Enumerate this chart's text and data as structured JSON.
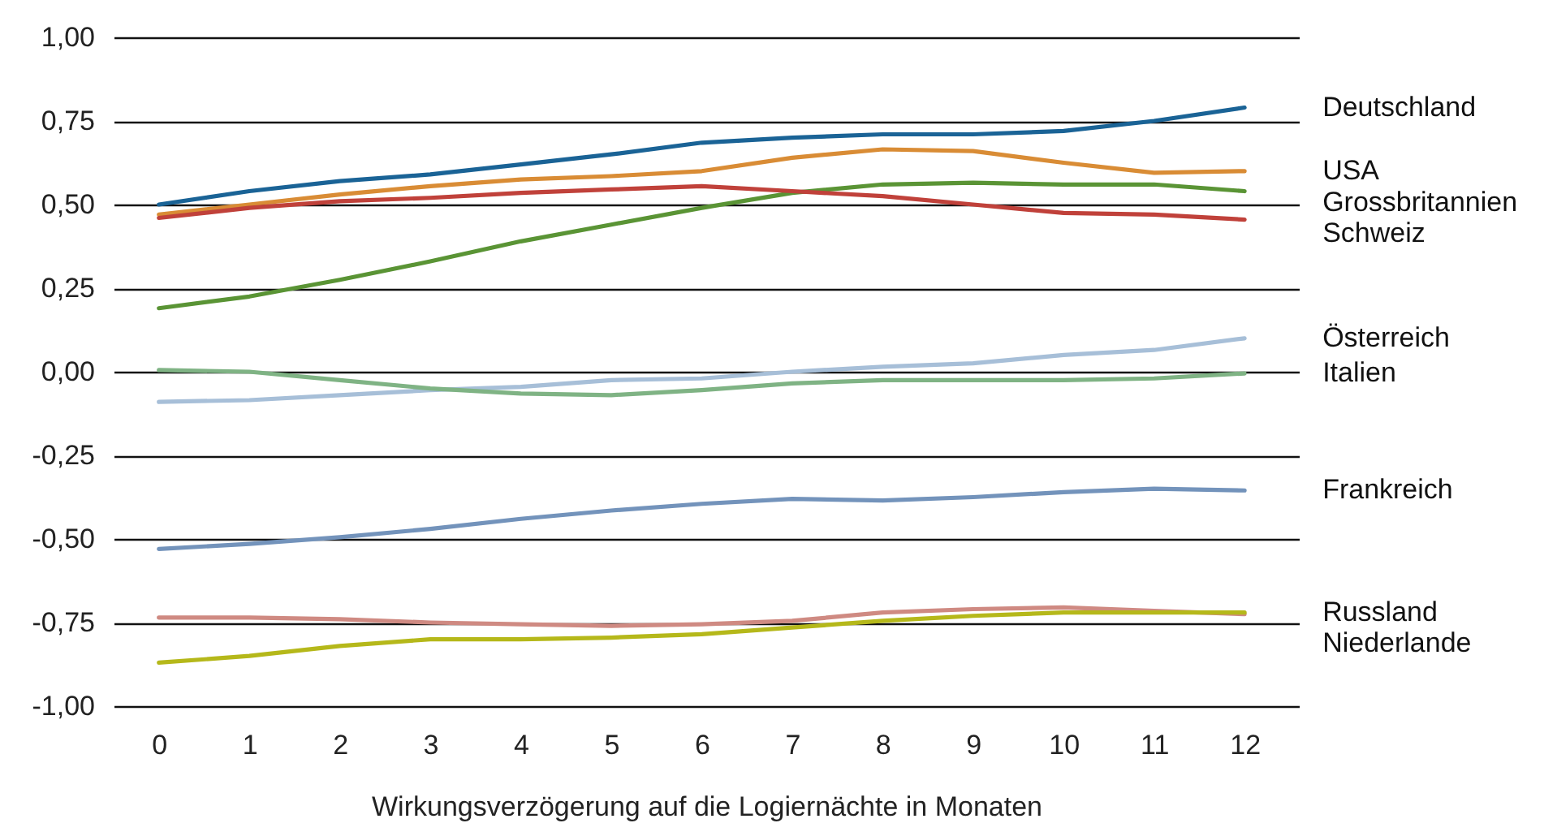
{
  "chart_data": {
    "type": "line",
    "xlabel": "Wirkungsverzögerung auf die Logiernächte in Monaten",
    "x": [
      0,
      1,
      2,
      3,
      4,
      5,
      6,
      7,
      8,
      9,
      10,
      11,
      12
    ],
    "xlim": [
      -0.5,
      12.6
    ],
    "xticks": [
      0,
      1,
      2,
      3,
      4,
      5,
      6,
      7,
      8,
      9,
      10,
      11,
      12
    ],
    "ylim": [
      -1,
      1
    ],
    "yticks": [
      {
        "value": -1,
        "label": "-1,00"
      },
      {
        "value": -0.75,
        "label": "-0,75"
      },
      {
        "value": -0.5,
        "label": "-0,50"
      },
      {
        "value": -0.25,
        "label": "-0,25"
      },
      {
        "value": 0,
        "label": "0,00"
      },
      {
        "value": 0.25,
        "label": "0,25"
      },
      {
        "value": 0.5,
        "label": "0,50"
      },
      {
        "value": 0.75,
        "label": "0,75"
      },
      {
        "value": 1,
        "label": "1,00"
      }
    ],
    "grid": "y",
    "legend": false,
    "marker": "none",
    "line_style": "solid",
    "series": [
      {
        "name": "Deutschland",
        "color": "#1a6396",
        "values": [
          0.5,
          0.54,
          0.57,
          0.59,
          0.62,
          0.65,
          0.685,
          0.7,
          0.71,
          0.71,
          0.72,
          0.75,
          0.79
        ]
      },
      {
        "name": "USA",
        "color": "#d98c35",
        "values": [
          0.47,
          0.5,
          0.53,
          0.555,
          0.575,
          0.585,
          0.6,
          0.64,
          0.665,
          0.66,
          0.625,
          0.595,
          0.6
        ]
      },
      {
        "name": "Grossbritannien",
        "color": "#5a9435",
        "values": [
          0.19,
          0.225,
          0.275,
          0.33,
          0.39,
          0.44,
          0.49,
          0.535,
          0.56,
          0.565,
          0.56,
          0.56,
          0.54
        ]
      },
      {
        "name": "Schweiz",
        "color": "#c0413a",
        "values": [
          0.46,
          0.49,
          0.51,
          0.52,
          0.535,
          0.545,
          0.555,
          0.54,
          0.525,
          0.5,
          0.475,
          0.47,
          0.455
        ]
      },
      {
        "name": "Österreich",
        "color": "#a7bfd8",
        "values": [
          -0.09,
          -0.085,
          -0.07,
          -0.055,
          -0.045,
          -0.025,
          -0.02,
          0.0,
          0.015,
          0.025,
          0.05,
          0.065,
          0.1
        ]
      },
      {
        "name": "Italien",
        "color": "#7fb384",
        "values": [
          0.005,
          0.0,
          -0.025,
          -0.05,
          -0.065,
          -0.07,
          -0.055,
          -0.035,
          -0.025,
          -0.025,
          -0.025,
          -0.02,
          -0.005
        ]
      },
      {
        "name": "Frankreich",
        "color": "#7393bb",
        "values": [
          -0.53,
          -0.515,
          -0.495,
          -0.47,
          -0.44,
          -0.415,
          -0.395,
          -0.38,
          -0.385,
          -0.375,
          -0.36,
          -0.35,
          -0.355
        ]
      },
      {
        "name": "Niederlande",
        "color": "#cf8a82",
        "values": [
          -0.735,
          -0.735,
          -0.74,
          -0.75,
          -0.755,
          -0.76,
          -0.755,
          -0.745,
          -0.72,
          -0.71,
          -0.705,
          -0.715,
          -0.725
        ]
      },
      {
        "name": "Russland",
        "color": "#b5b81a",
        "values": [
          -0.87,
          -0.85,
          -0.82,
          -0.8,
          -0.8,
          -0.795,
          -0.785,
          -0.765,
          -0.745,
          -0.73,
          -0.72,
          -0.72,
          -0.72
        ]
      }
    ]
  }
}
